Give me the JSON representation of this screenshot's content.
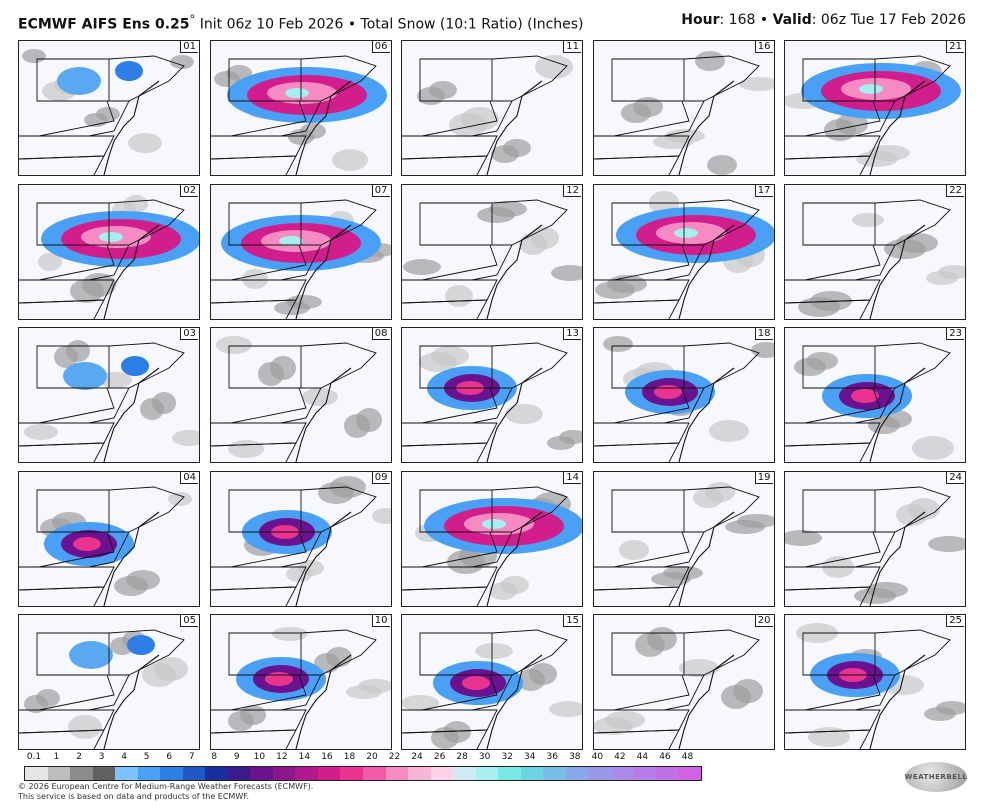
{
  "header": {
    "model": "ECMWF AIFS Ens 0.25",
    "degree": "°",
    "init": "Init 06z 10 Feb 2026",
    "bullet": "•",
    "product": "Total Snow (10:1 Ratio) (Inches)",
    "hour_label": "Hour",
    "hour_value": ": 168",
    "valid_label": "Valid",
    "valid_value": ": 06z Tue 17 Feb 2026"
  },
  "panels": [
    {
      "id": "01",
      "intensity": "low"
    },
    {
      "id": "06",
      "intensity": "high"
    },
    {
      "id": "11",
      "intensity": "none"
    },
    {
      "id": "16",
      "intensity": "none"
    },
    {
      "id": "21",
      "intensity": "high"
    },
    {
      "id": "02",
      "intensity": "high"
    },
    {
      "id": "07",
      "intensity": "high"
    },
    {
      "id": "12",
      "intensity": "none"
    },
    {
      "id": "17",
      "intensity": "high"
    },
    {
      "id": "22",
      "intensity": "none"
    },
    {
      "id": "03",
      "intensity": "low"
    },
    {
      "id": "08",
      "intensity": "none"
    },
    {
      "id": "13",
      "intensity": "mid"
    },
    {
      "id": "18",
      "intensity": "mid"
    },
    {
      "id": "23",
      "intensity": "mid"
    },
    {
      "id": "04",
      "intensity": "mid"
    },
    {
      "id": "09",
      "intensity": "mid"
    },
    {
      "id": "14",
      "intensity": "high"
    },
    {
      "id": "19",
      "intensity": "none"
    },
    {
      "id": "24",
      "intensity": "none"
    },
    {
      "id": "05",
      "intensity": "low"
    },
    {
      "id": "10",
      "intensity": "mid"
    },
    {
      "id": "15",
      "intensity": "mid"
    },
    {
      "id": "20",
      "intensity": "none"
    },
    {
      "id": "25",
      "intensity": "mid"
    }
  ],
  "scale": {
    "labels": [
      "0.1",
      "1",
      "2",
      "3",
      "4",
      "5",
      "6",
      "7",
      "8",
      "9",
      "10",
      "12",
      "14",
      "16",
      "18",
      "20",
      "22",
      "24",
      "26",
      "28",
      "30",
      "32",
      "34",
      "36",
      "38",
      "40",
      "42",
      "44",
      "46",
      "48"
    ],
    "colors": [
      "#e6e6e6",
      "#bdbdbd",
      "#8c8c8c",
      "#616161",
      "#7ec3ff",
      "#4aa0f5",
      "#2d7ee6",
      "#2157c7",
      "#1a2e9e",
      "#3a1a8f",
      "#6a128f",
      "#8d168f",
      "#b3198f",
      "#d21e8c",
      "#e9338f",
      "#f25aa8",
      "#f68bc3",
      "#f9b5d8",
      "#fbd2e6",
      "#cfe9f5",
      "#a6eef0",
      "#7be8e8",
      "#6fd3e6",
      "#79bde8",
      "#8aa9ea",
      "#9b97ea",
      "#aa8aea",
      "#b67de8",
      "#c270e6",
      "#cf63e4"
    ]
  },
  "footer": {
    "line1": "© 2026 European Centre for Medium-Range Weather Forecasts (ECMWF).",
    "line2": "This service is based on data and products of the ECMWF."
  },
  "logo_text": "WEATHERBELL"
}
